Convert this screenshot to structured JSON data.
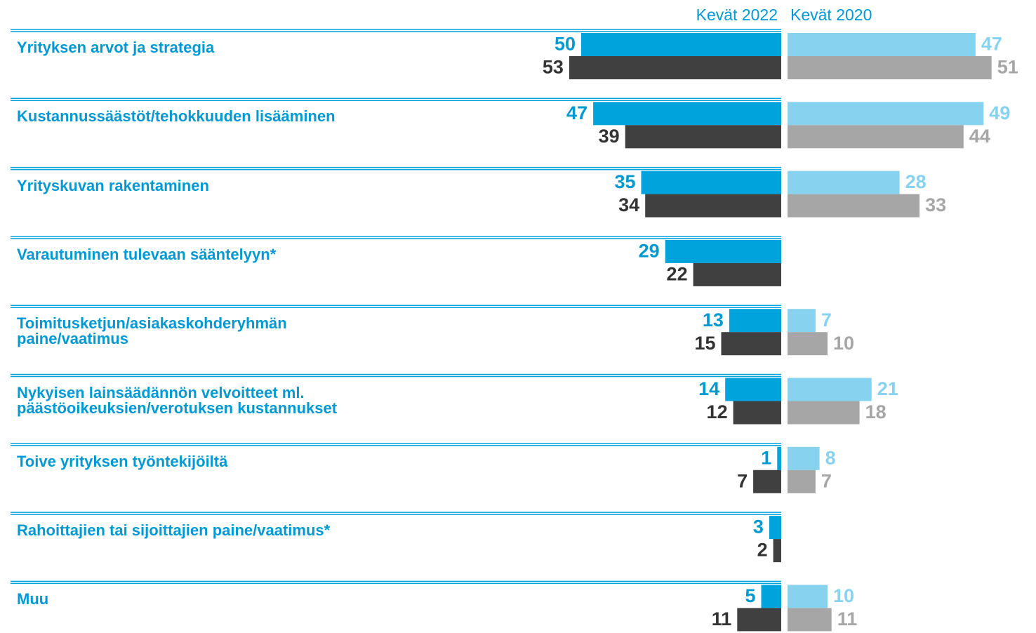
{
  "chart_data": [
    {
      "type": "bar",
      "title": "Kevät 2022",
      "categories": [
        "Yrityksen arvot ja strategia",
        "Kustannussäästöt/tehokkuuden lisääminen",
        "Yrityskuvan rakentaminen",
        "Varautuminen tulevaan sääntelyyn*",
        "Toimitusketjun/asiakaskohderyhmän\npaine/vaatimus",
        "Nykyisen lainsäädännön velvoitteet ml.\npäästöoikeuksien/verotuksen kustannukset",
        "Toive yrityksen työntekijöiltä",
        "Rahoittajien tai sijoittajien paine/vaatimus*",
        "Muu"
      ],
      "series": [
        {
          "color": "#00a3dc",
          "label_color": "#0099d0",
          "values": [
            50,
            47,
            35,
            29,
            13,
            14,
            1,
            3,
            5
          ]
        },
        {
          "color": "#404040",
          "label_color": "#333333",
          "values": [
            53,
            39,
            34,
            22,
            15,
            12,
            7,
            2,
            11
          ]
        }
      ]
    },
    {
      "type": "bar",
      "title": "Kevät 2020",
      "series": [
        {
          "color": "#87d3ef",
          "label_color": "#87d3ef",
          "values": [
            47,
            49,
            28,
            null,
            7,
            21,
            8,
            null,
            10
          ]
        },
        {
          "color": "#a6a6a6",
          "label_color": "#a6a6a6",
          "values": [
            51,
            44,
            33,
            null,
            10,
            18,
            7,
            null,
            11
          ]
        }
      ]
    }
  ]
}
